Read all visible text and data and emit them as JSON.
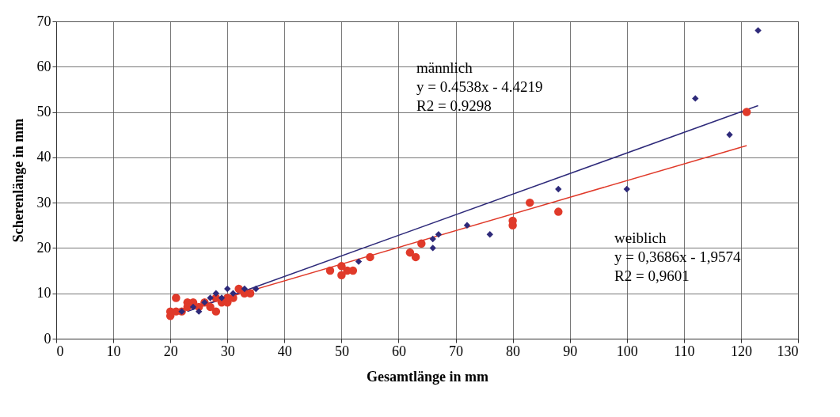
{
  "chart_data": {
    "type": "scatter",
    "xlabel": "Gesamtlänge in mm",
    "ylabel": "Scherenlänge in mm",
    "xlim": [
      0,
      130
    ],
    "ylim": [
      0,
      70
    ],
    "xticks": [
      0,
      10,
      20,
      30,
      40,
      50,
      60,
      70,
      80,
      90,
      100,
      110,
      120,
      130
    ],
    "yticks": [
      0,
      10,
      20,
      30,
      40,
      50,
      60,
      70
    ],
    "grid": true,
    "series": [
      {
        "marker": "diamond",
        "color": "#2e2a7a",
        "x": [
          22,
          24,
          25,
          26,
          27,
          28,
          29,
          30,
          31,
          33,
          35,
          53,
          66,
          66,
          67,
          72,
          76,
          88,
          100,
          112,
          118,
          123
        ],
        "values": [
          6,
          7,
          6,
          8,
          9,
          10,
          9,
          11,
          10,
          11,
          11,
          17,
          20,
          22,
          23,
          25,
          23,
          33,
          33,
          53,
          45,
          68
        ]
      },
      {
        "marker": "circle",
        "color": "#e03a2a",
        "x": [
          20,
          20,
          21,
          21,
          22,
          23,
          23,
          24,
          25,
          26,
          27,
          28,
          28,
          29,
          30,
          30,
          31,
          32,
          33,
          34,
          48,
          50,
          50,
          51,
          52,
          55,
          62,
          63,
          64,
          80,
          80,
          83,
          88,
          121
        ],
        "values": [
          5,
          6,
          9,
          6,
          6,
          7,
          8,
          8,
          7,
          8,
          7,
          6,
          9,
          8,
          8,
          9,
          9,
          11,
          10,
          10,
          15,
          14,
          16,
          15,
          15,
          18,
          19,
          18,
          21,
          25,
          26,
          30,
          28,
          50
        ]
      },
      {
        "type": "line",
        "color": "#2e2a7a",
        "x": [
          23,
          123
        ],
        "values": [
          6,
          51.4
        ]
      },
      {
        "type": "line",
        "color": "#e03a2a",
        "x": [
          20,
          121
        ],
        "values": [
          5.4,
          42.6
        ]
      }
    ],
    "annotations": [
      "männlich\ny = 0.4538x - 4.4219\nR2 = 0.9298",
      "weiblich\ny = 0,3686x - 1,9574\nR2 = 0,9601"
    ]
  }
}
